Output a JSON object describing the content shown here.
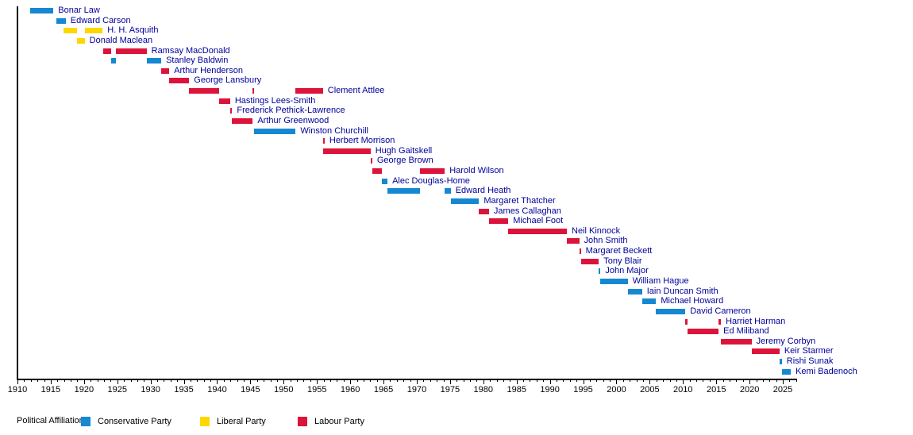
{
  "chart_data": {
    "type": "timeline",
    "x_axis": {
      "min": 1910,
      "max": 2027,
      "major_tick_interval": 5,
      "minor_tick_interval": 1,
      "tick_labels": [
        "1910",
        "1915",
        "1920",
        "1925",
        "1930",
        "1935",
        "1940",
        "1945",
        "1950",
        "1955",
        "1960",
        "1965",
        "1970",
        "1975",
        "1980",
        "1985",
        "1990",
        "1995",
        "2000",
        "2005",
        "2010",
        "2015",
        "2020",
        "2025"
      ]
    },
    "colors": {
      "person_label_text": "#000099",
      "axis": "#000000"
    },
    "parties": {
      "conservative": {
        "label": "Conservative Party",
        "color": "#1688D2"
      },
      "liberal": {
        "label": "Liberal Party",
        "color": "#FFD700"
      },
      "labour": {
        "label": "Labour Party",
        "color": "#DC143C"
      }
    },
    "legend": {
      "title": "Political Affiliation:",
      "items": [
        {
          "party": "conservative",
          "label": "Conservative Party"
        },
        {
          "party": "liberal",
          "label": "Liberal Party"
        },
        {
          "party": "labour",
          "label": "Labour Party"
        }
      ]
    },
    "people": [
      {
        "name": "Bonar Law",
        "party": "conservative",
        "terms": [
          [
            1911.85,
            1915.4
          ]
        ]
      },
      {
        "name": "Edward Carson",
        "party": "conservative",
        "terms": [
          [
            1915.8,
            1917.25
          ]
        ]
      },
      {
        "name": "H. H. Asquith",
        "party": "liberal",
        "terms": [
          [
            1916.95,
            1918.95
          ],
          [
            1920.1,
            1922.8
          ]
        ]
      },
      {
        "name": "Donald Maclean",
        "party": "liberal",
        "terms": [
          [
            1918.95,
            1920.1
          ]
        ]
      },
      {
        "name": "Ramsay MacDonald",
        "party": "labour",
        "terms": [
          [
            1922.85,
            1924.05
          ],
          [
            1924.85,
            1929.4
          ]
        ]
      },
      {
        "name": "Stanley Baldwin",
        "party": "conservative",
        "terms": [
          [
            1924.05,
            1924.85
          ],
          [
            1929.4,
            1931.6
          ]
        ]
      },
      {
        "name": "Arthur Henderson",
        "party": "labour",
        "terms": [
          [
            1931.6,
            1932.8
          ]
        ]
      },
      {
        "name": "George Lansbury",
        "party": "labour",
        "terms": [
          [
            1932.8,
            1935.8
          ]
        ]
      },
      {
        "name": "Clement Attlee",
        "party": "labour",
        "terms": [
          [
            1935.8,
            1940.35
          ],
          [
            1945.35,
            1945.6
          ],
          [
            1951.8,
            1955.9
          ]
        ]
      },
      {
        "name": "Hastings Lees-Smith",
        "party": "labour",
        "terms": [
          [
            1940.35,
            1941.95
          ]
        ]
      },
      {
        "name": "Frederick Pethick-Lawrence",
        "party": "labour",
        "terms": [
          [
            1941.95,
            1942.25
          ]
        ]
      },
      {
        "name": "Arthur Greenwood",
        "party": "labour",
        "terms": [
          [
            1942.25,
            1945.35
          ]
        ]
      },
      {
        "name": "Winston Churchill",
        "party": "conservative",
        "terms": [
          [
            1945.6,
            1951.8
          ]
        ]
      },
      {
        "name": "Herbert Morrison",
        "party": "labour",
        "terms": [
          [
            1955.9,
            1956.15
          ]
        ]
      },
      {
        "name": "Hugh Gaitskell",
        "party": "labour",
        "terms": [
          [
            1955.95,
            1963.05
          ]
        ]
      },
      {
        "name": "George Brown",
        "party": "labour",
        "terms": [
          [
            1963.05,
            1963.3
          ]
        ]
      },
      {
        "name": "Harold Wilson",
        "party": "labour",
        "terms": [
          [
            1963.3,
            1964.8
          ],
          [
            1970.45,
            1974.2
          ]
        ]
      },
      {
        "name": "Alec Douglas-Home",
        "party": "conservative",
        "terms": [
          [
            1964.8,
            1965.6
          ]
        ]
      },
      {
        "name": "Edward Heath",
        "party": "conservative",
        "terms": [
          [
            1965.6,
            1970.45
          ],
          [
            1974.2,
            1975.1
          ]
        ]
      },
      {
        "name": "Margaret Thatcher",
        "party": "conservative",
        "terms": [
          [
            1975.1,
            1979.35
          ]
        ]
      },
      {
        "name": "James Callaghan",
        "party": "labour",
        "terms": [
          [
            1979.35,
            1980.85
          ]
        ]
      },
      {
        "name": "Michael Foot",
        "party": "labour",
        "terms": [
          [
            1980.85,
            1983.75
          ]
        ]
      },
      {
        "name": "Neil Kinnock",
        "party": "labour",
        "terms": [
          [
            1983.75,
            1992.55
          ]
        ]
      },
      {
        "name": "John Smith",
        "party": "labour",
        "terms": [
          [
            1992.55,
            1994.4
          ]
        ]
      },
      {
        "name": "Margaret Beckett",
        "party": "labour",
        "terms": [
          [
            1994.4,
            1994.65
          ]
        ]
      },
      {
        "name": "Tony Blair",
        "party": "labour",
        "terms": [
          [
            1994.65,
            1997.35
          ]
        ]
      },
      {
        "name": "John Major",
        "party": "conservative",
        "terms": [
          [
            1997.35,
            1997.6
          ]
        ]
      },
      {
        "name": "William Hague",
        "party": "conservative",
        "terms": [
          [
            1997.5,
            2001.7
          ]
        ]
      },
      {
        "name": "Iain Duncan Smith",
        "party": "conservative",
        "terms": [
          [
            2001.7,
            2003.85
          ]
        ]
      },
      {
        "name": "Michael Howard",
        "party": "conservative",
        "terms": [
          [
            2003.85,
            2005.95
          ]
        ]
      },
      {
        "name": "David Cameron",
        "party": "conservative",
        "terms": [
          [
            2005.95,
            2010.35
          ]
        ]
      },
      {
        "name": "Harriet Harman",
        "party": "labour",
        "terms": [
          [
            2010.35,
            2010.7
          ],
          [
            2015.35,
            2015.7
          ]
        ]
      },
      {
        "name": "Ed Miliband",
        "party": "labour",
        "terms": [
          [
            2010.7,
            2015.35
          ]
        ]
      },
      {
        "name": "Jeremy Corbyn",
        "party": "labour",
        "terms": [
          [
            2015.7,
            2020.3
          ]
        ]
      },
      {
        "name": "Keir Starmer",
        "party": "labour",
        "terms": [
          [
            2020.3,
            2024.5
          ]
        ]
      },
      {
        "name": "Rishi Sunak",
        "party": "conservative",
        "terms": [
          [
            2024.5,
            2024.85
          ]
        ]
      },
      {
        "name": "Kemi Badenoch",
        "party": "conservative",
        "terms": [
          [
            2024.85,
            2026.2
          ]
        ]
      }
    ]
  }
}
